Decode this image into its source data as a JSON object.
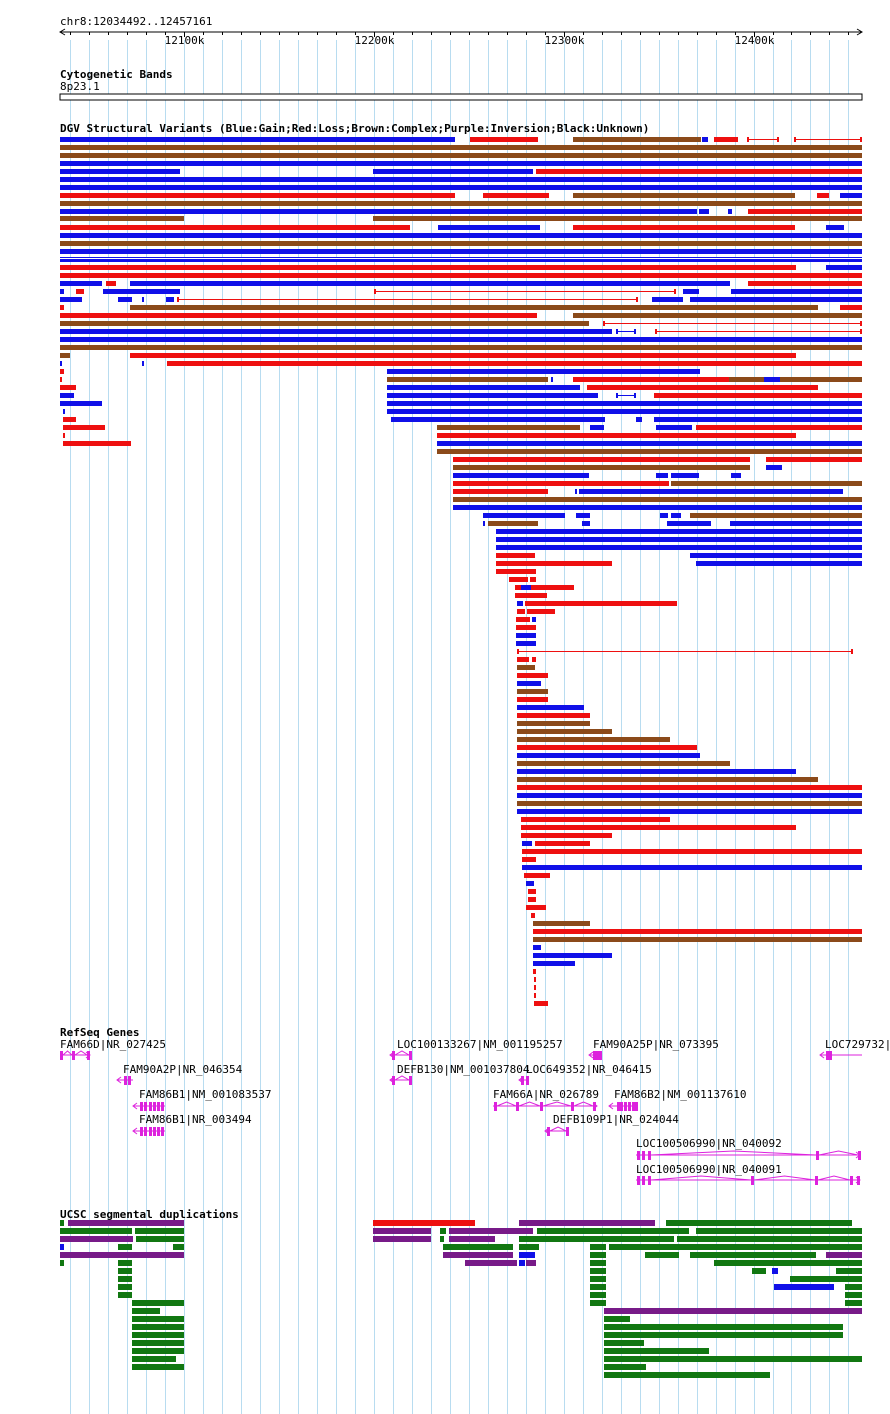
{
  "region": {
    "label": "chr8:12034492..12457161",
    "start": 12034492,
    "end": 12457161
  },
  "ruler": {
    "ticks": [
      {
        "pos": 12100000,
        "label": "12100k"
      },
      {
        "pos": 12200000,
        "label": "12200k"
      },
      {
        "pos": 12300000,
        "label": "12300k"
      },
      {
        "pos": 12400000,
        "label": "12400k"
      }
    ]
  },
  "colors": {
    "gain": "#1010e8",
    "loss": "#ee1010",
    "complex": "#8b4a1a",
    "inversion": "#882288",
    "unknown": "#000000",
    "gene": "#dd22dd",
    "grid": "#b8dcf0",
    "sd_green": "#117711",
    "sd_purple": "#771a88",
    "sd_red": "#ee1010",
    "sd_blue": "#1010e8"
  },
  "tracks": {
    "cytoband": {
      "title": "Cytogenetic Bands",
      "band": "8p23.1"
    },
    "dgv": {
      "title": "DGV Structural Variants (Blue:Gain;Red:Loss;Brown:Complex;Purple:Inversion;Black:Unknown)"
    },
    "refseq": {
      "title": "RefSeq Genes"
    },
    "segdup": {
      "title": "UCSC segmental duplications"
    }
  },
  "genes": [
    {
      "label": "FAM66D|NR_027425",
      "strand": "+"
    },
    {
      "label": "FAM90A2P|NR_046354",
      "strand": "-"
    },
    {
      "label": "FAM86B1|NM_001083537",
      "strand": "-"
    },
    {
      "label": "FAM86B1|NR_003494",
      "strand": "-"
    },
    {
      "label": "LOC100133267|NM_001195257",
      "strand": "-"
    },
    {
      "label": "DEFB130|NM_001037804",
      "strand": "-"
    },
    {
      "label": "LOC649352|NR_046415",
      "strand": "-"
    },
    {
      "label": "FAM66A|NR_026789",
      "strand": "+"
    },
    {
      "label": "DEFB109P1|NR_024044",
      "strand": "-"
    },
    {
      "label": "FAM90A25P|NR_073395",
      "strand": "-"
    },
    {
      "label": "FAM86B2|NM_001137610",
      "strand": "-"
    },
    {
      "label": "LOC100506990|NR_040092",
      "strand": "+"
    },
    {
      "label": "LOC100506990|NR_040091",
      "strand": "+"
    },
    {
      "label": "LOC729732|N",
      "strand": "-"
    }
  ]
}
